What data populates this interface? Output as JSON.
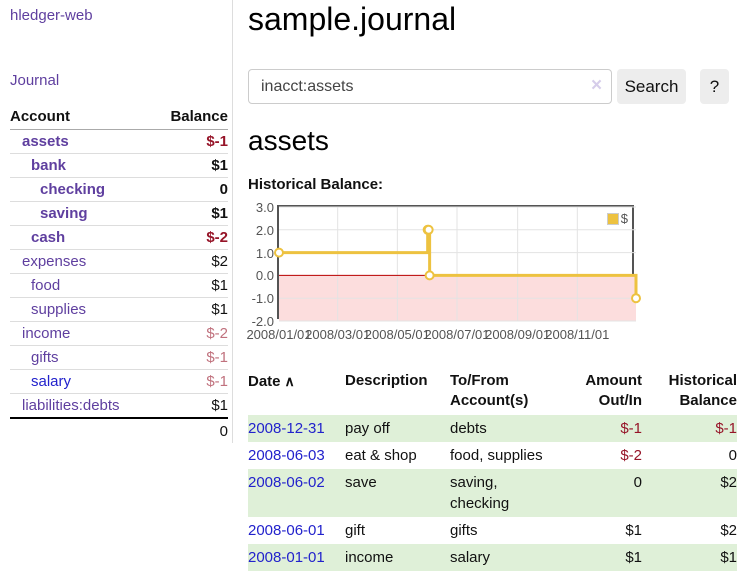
{
  "colors": {
    "link_purple": "#5f3f9f",
    "link_blue": "#2222cc",
    "negative_strong": "#961428",
    "negative_muted": "#c0717d",
    "row_green": "#dff0d8",
    "chart_line_gold": "#edc240",
    "chart_negative_area": "#fcdddd",
    "chart_zero_line": "#bb0000",
    "chart_frame_gray": "#545454"
  },
  "sidebar": {
    "brand": "hledger-web",
    "journal_link": "Journal",
    "accounts": {
      "headers": {
        "account": "Account",
        "balance": "Balance"
      },
      "rows": [
        {
          "name": "assets",
          "balance": "$-1",
          "indent": 1,
          "active": true
        },
        {
          "name": "bank",
          "balance": "$1",
          "indent": 2,
          "active": true
        },
        {
          "name": "checking",
          "balance": "0",
          "indent": 3,
          "active": true
        },
        {
          "name": "saving",
          "balance": "$1",
          "indent": 3,
          "active": true
        },
        {
          "name": "cash",
          "balance": "$-2",
          "indent": 2,
          "active": true
        },
        {
          "name": "expenses",
          "balance": "$2",
          "indent": 1,
          "active": false
        },
        {
          "name": "food",
          "balance": "$1",
          "indent": 2,
          "active": false
        },
        {
          "name": "supplies",
          "balance": "$1",
          "indent": 2,
          "active": false
        },
        {
          "name": "income",
          "balance": "$-2",
          "indent": 1,
          "active": false
        },
        {
          "name": "gifts",
          "balance": "$-1",
          "indent": 2,
          "active": false
        },
        {
          "name": "salary",
          "balance": "$-1",
          "indent": 2,
          "active": false,
          "unvisited": true
        },
        {
          "name": "liabilities:debts",
          "balance": "$1",
          "indent": 1,
          "active": false
        }
      ],
      "total": "0"
    }
  },
  "header": {
    "title": "sample.journal"
  },
  "search": {
    "value": "inacct:assets",
    "clear_icon": "×",
    "button_label": "Search",
    "help_label": "?"
  },
  "account_page": {
    "title": "assets",
    "chart_caption": "Historical Balance:"
  },
  "chart_data": {
    "type": "line",
    "title": "Historical Balance",
    "step": true,
    "xrange": [
      "2008-01-01",
      "2008-12-31"
    ],
    "ylim": [
      -2.0,
      3.0
    ],
    "yticks": [
      "3.0",
      "2.0",
      "1.0",
      "0.0",
      "-1.0",
      "-2.0"
    ],
    "xticks": [
      {
        "date": "2008-01-01",
        "label": "2008/01/01"
      },
      {
        "date": "2008-03-01",
        "label": "2008/03/01"
      },
      {
        "date": "2008-05-01",
        "label": "2008/05/01"
      },
      {
        "date": "2008-07-01",
        "label": "2008/07/01"
      },
      {
        "date": "2008-09-01",
        "label": "2008/09/01"
      },
      {
        "date": "2008-11-01",
        "label": "2008/11/01"
      }
    ],
    "series": [
      {
        "name": "$",
        "color": "#edc240",
        "points": [
          {
            "x": "2008-01-01",
            "y": 1
          },
          {
            "x": "2008-06-01",
            "y": 2
          },
          {
            "x": "2008-06-02",
            "y": 2
          },
          {
            "x": "2008-06-03",
            "y": 0
          },
          {
            "x": "2008-12-31",
            "y": -1
          }
        ]
      }
    ],
    "grid": true,
    "legend_position": "top-right"
  },
  "register": {
    "headers": {
      "date": "Date",
      "description": "Description",
      "accounts": "To/From Account(s)",
      "amount": "Amount Out/In",
      "balance": "Historical Balance"
    },
    "sort_icon": "∧",
    "rows": [
      {
        "date": "2008-12-31",
        "description": "pay off",
        "accounts": "debts",
        "amount": "$-1",
        "balance": "$-1"
      },
      {
        "date": "2008-06-03",
        "description": "eat & shop",
        "accounts": "food, supplies",
        "amount": "$-2",
        "balance": "0"
      },
      {
        "date": "2008-06-02",
        "description": "save",
        "accounts": "saving, checking",
        "amount": "0",
        "balance": "$2"
      },
      {
        "date": "2008-06-01",
        "description": "gift",
        "accounts": "gifts",
        "amount": "$1",
        "balance": "$2"
      },
      {
        "date": "2008-01-01",
        "description": "income",
        "accounts": "salary",
        "amount": "$1",
        "balance": "$1"
      }
    ]
  }
}
